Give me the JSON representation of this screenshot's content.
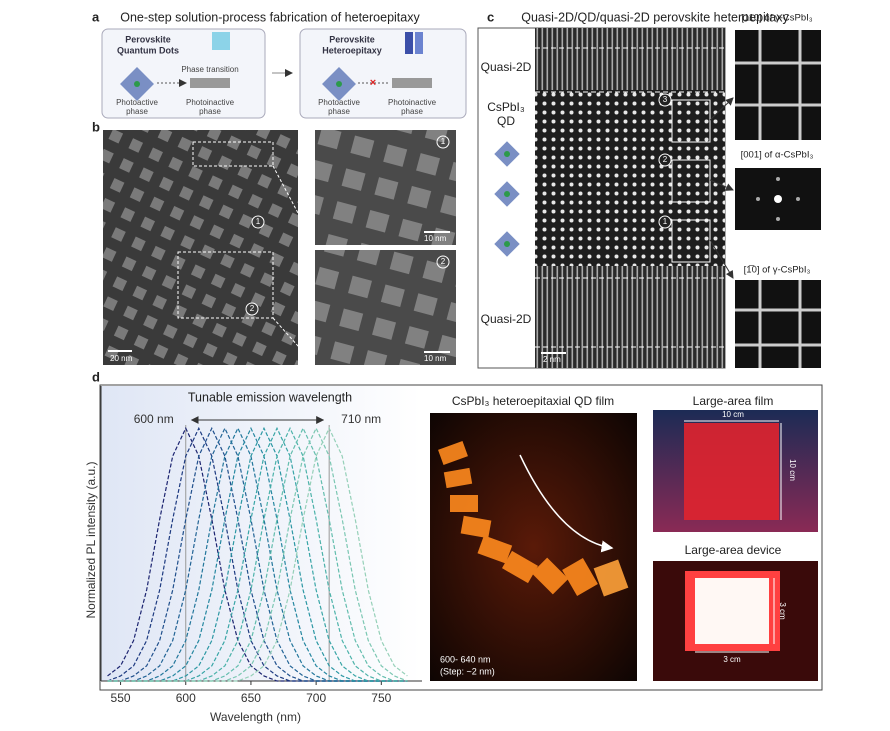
{
  "panel_a": {
    "label": "a",
    "title": "One-step solution-process fabrication of heteroepitaxy",
    "left_box": {
      "title": [
        "Perovskite",
        "Quantum Dots"
      ],
      "arrow_text": "Phase transition",
      "left_caption": [
        "Photoactive",
        "phase"
      ],
      "right_caption": [
        "Photoinactive",
        "phase"
      ]
    },
    "right_box": {
      "title": [
        "Perovskite",
        "Heteroepitaxy"
      ],
      "left_caption": [
        "Photoactive",
        "phase"
      ],
      "right_caption": [
        "Photoinactive",
        "phase"
      ]
    }
  },
  "panel_b": {
    "label": "b",
    "main_scale": "20 nm",
    "main_markers": [
      "1",
      "2"
    ],
    "inset_markers": [
      "1",
      "2"
    ],
    "inset_scales": [
      "10 nm",
      "10 nm"
    ]
  },
  "panel_c": {
    "label": "c",
    "title": "Quasi-2D/QD/quasi-2D perovskite heteroepitaxy",
    "layers": [
      "Quasi-2D",
      "CsPbI₃",
      "QD",
      "Quasi-2D"
    ],
    "scale": "2 nm",
    "markers": [
      "3",
      "2",
      "1"
    ],
    "fft_labels": [
      "[110] of γ-CsPbI₃",
      "[001] of α-CsPbI₃",
      "[1̅0] of γ-CsPbI₃"
    ]
  },
  "panel_d": {
    "label": "d",
    "photo_title": "CsPbI₃ heteroepitaxial QD film",
    "photo_caption": [
      "600- 640 nm",
      "(Step: ~2 nm)"
    ],
    "film_title": "Large-area film",
    "film_dims": [
      "10 cm",
      "10 cm"
    ],
    "device_title": "Large-area device",
    "device_dims": [
      "3 cm",
      "3 cm"
    ]
  },
  "chart_data": {
    "type": "line",
    "title": "Tunable emission wavelength",
    "annotations": [
      "600 nm",
      "710 nm"
    ],
    "x_label": "Wavelength (nm)",
    "y_label": "Normalized PL intensity (a.u.)",
    "x": [
      540,
      550,
      560,
      570,
      580,
      590,
      600,
      610,
      620,
      630,
      640,
      650,
      660,
      670,
      680,
      690,
      700,
      710,
      720,
      730,
      740,
      750,
      760,
      770
    ],
    "series": [
      {
        "color": "#1c2470",
        "values": [
          0.02,
          0.06,
          0.16,
          0.36,
          0.64,
          0.89,
          1,
          0.89,
          0.64,
          0.36,
          0.16,
          0.06,
          0.02,
          0,
          0,
          0,
          0,
          0,
          0,
          0,
          0,
          0,
          0,
          0
        ]
      },
      {
        "color": "#1d3a80",
        "values": [
          0,
          0.02,
          0.06,
          0.16,
          0.36,
          0.64,
          0.89,
          1,
          0.89,
          0.64,
          0.36,
          0.16,
          0.06,
          0.02,
          0,
          0,
          0,
          0,
          0,
          0,
          0,
          0,
          0,
          0
        ]
      },
      {
        "color": "#1f4f8c",
        "values": [
          0,
          0,
          0.02,
          0.06,
          0.16,
          0.36,
          0.64,
          0.89,
          1,
          0.89,
          0.64,
          0.36,
          0.16,
          0.06,
          0.02,
          0,
          0,
          0,
          0,
          0,
          0,
          0,
          0,
          0
        ]
      },
      {
        "color": "#216395",
        "values": [
          0,
          0,
          0,
          0.02,
          0.06,
          0.16,
          0.36,
          0.64,
          0.89,
          1,
          0.89,
          0.64,
          0.36,
          0.16,
          0.06,
          0.02,
          0,
          0,
          0,
          0,
          0,
          0,
          0,
          0
        ]
      },
      {
        "color": "#22769b",
        "values": [
          0,
          0,
          0,
          0,
          0.02,
          0.06,
          0.16,
          0.36,
          0.64,
          0.89,
          1,
          0.89,
          0.64,
          0.36,
          0.16,
          0.06,
          0.02,
          0,
          0,
          0,
          0,
          0,
          0,
          0
        ]
      },
      {
        "color": "#2587a0",
        "values": [
          0,
          0,
          0,
          0,
          0,
          0.02,
          0.06,
          0.16,
          0.36,
          0.64,
          0.89,
          1,
          0.89,
          0.64,
          0.36,
          0.16,
          0.06,
          0.02,
          0,
          0,
          0,
          0,
          0,
          0
        ]
      },
      {
        "color": "#2b97a3",
        "values": [
          0,
          0,
          0,
          0,
          0,
          0,
          0.02,
          0.06,
          0.16,
          0.36,
          0.64,
          0.89,
          1,
          0.89,
          0.64,
          0.36,
          0.16,
          0.06,
          0.02,
          0,
          0,
          0,
          0,
          0
        ]
      },
      {
        "color": "#38a5a6",
        "values": [
          0,
          0,
          0,
          0,
          0,
          0,
          0,
          0.02,
          0.06,
          0.16,
          0.36,
          0.64,
          0.89,
          1,
          0.89,
          0.64,
          0.36,
          0.16,
          0.06,
          0.02,
          0,
          0,
          0,
          0
        ]
      },
      {
        "color": "#4bb2a9",
        "values": [
          0,
          0,
          0,
          0,
          0,
          0,
          0,
          0,
          0.02,
          0.06,
          0.16,
          0.36,
          0.64,
          0.89,
          1,
          0.89,
          0.64,
          0.36,
          0.16,
          0.06,
          0.02,
          0,
          0,
          0
        ]
      },
      {
        "color": "#62bdad",
        "values": [
          0,
          0,
          0,
          0,
          0,
          0,
          0,
          0,
          0,
          0.02,
          0.06,
          0.16,
          0.36,
          0.64,
          0.89,
          1,
          0.89,
          0.64,
          0.36,
          0.16,
          0.06,
          0.02,
          0,
          0
        ]
      },
      {
        "color": "#7bc7b2",
        "values": [
          0,
          0,
          0,
          0,
          0,
          0,
          0,
          0,
          0,
          0,
          0.02,
          0.06,
          0.16,
          0.36,
          0.64,
          0.89,
          1,
          0.89,
          0.64,
          0.36,
          0.16,
          0.06,
          0.02,
          0
        ]
      },
      {
        "color": "#95d0b8",
        "values": [
          0,
          0,
          0,
          0,
          0,
          0,
          0,
          0,
          0,
          0,
          0,
          0.02,
          0.06,
          0.16,
          0.36,
          0.64,
          0.89,
          1,
          0.89,
          0.64,
          0.36,
          0.16,
          0.06,
          0.02
        ]
      }
    ],
    "xlim": [
      535,
      772
    ],
    "xticks": [
      550,
      600,
      650,
      700,
      750
    ],
    "ylim": [
      0,
      1.1
    ],
    "line_style": "dashed"
  }
}
